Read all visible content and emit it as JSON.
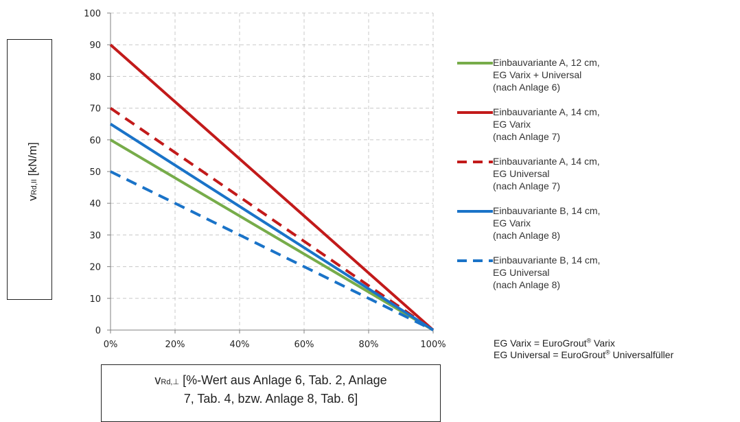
{
  "chart_data": {
    "type": "line",
    "x_tick_labels": [
      "0%",
      "20%",
      "40%",
      "60%",
      "80%",
      "100%"
    ],
    "y_tick_labels": [
      "0",
      "10",
      "20",
      "30",
      "40",
      "50",
      "60",
      "70",
      "80",
      "90",
      "100"
    ],
    "xlim": [
      0,
      100
    ],
    "ylim": [
      0,
      100
    ],
    "grid": true,
    "legend_position": "right",
    "ylabel": {
      "main": "v",
      "sub": "Rd,II",
      "rest": " [kN/m]"
    },
    "xlabel": {
      "main": "v",
      "sub": "Rd,⊥",
      "rest": " [%-Wert aus Anlage 6, Tab. 2, Anlage",
      "line2": "7, Tab. 4, bzw. Anlage 8, Tab. 6]"
    },
    "series": [
      {
        "name_lines": [
          "Einbauvariante A, 12 cm,",
          "EG Varix + Universal",
          "(nach Anlage 6)"
        ],
        "color": "#77ac4a",
        "dash": "solid",
        "x": [
          0,
          100
        ],
        "y": [
          60,
          0
        ]
      },
      {
        "name_lines": [
          "Einbauvariante A, 14 cm,",
          "EG Varix",
          "(nach Anlage 7)"
        ],
        "color": "#c21a1a",
        "dash": "solid",
        "x": [
          0,
          100
        ],
        "y": [
          90,
          0
        ]
      },
      {
        "name_lines": [
          "Einbauvariante A, 14 cm,",
          "EG Universal",
          "(nach Anlage 7)"
        ],
        "color": "#c21a1a",
        "dash": "dashed",
        "x": [
          0,
          100
        ],
        "y": [
          70,
          0
        ]
      },
      {
        "name_lines": [
          "Einbauvariante B, 14 cm,",
          "EG Varix",
          "(nach Anlage 8)"
        ],
        "color": "#1a73c8",
        "dash": "solid",
        "x": [
          0,
          100
        ],
        "y": [
          65,
          0
        ]
      },
      {
        "name_lines": [
          "Einbauvariante B, 14 cm,",
          "EG Universal",
          "(nach Anlage 8)"
        ],
        "color": "#1a73c8",
        "dash": "dashed",
        "x": [
          0,
          100
        ],
        "y": [
          50,
          0
        ]
      }
    ]
  },
  "abbreviations": {
    "line1_a": "EG Varix = EuroGrout",
    "line1_reg": "®",
    "line1_b": " Varix",
    "line2_a": "EG Universal = EuroGrout",
    "line2_reg": "®",
    "line2_b": " Universalfüller"
  },
  "colors": {
    "grid": "#c8c8c8",
    "axis": "#808080"
  }
}
